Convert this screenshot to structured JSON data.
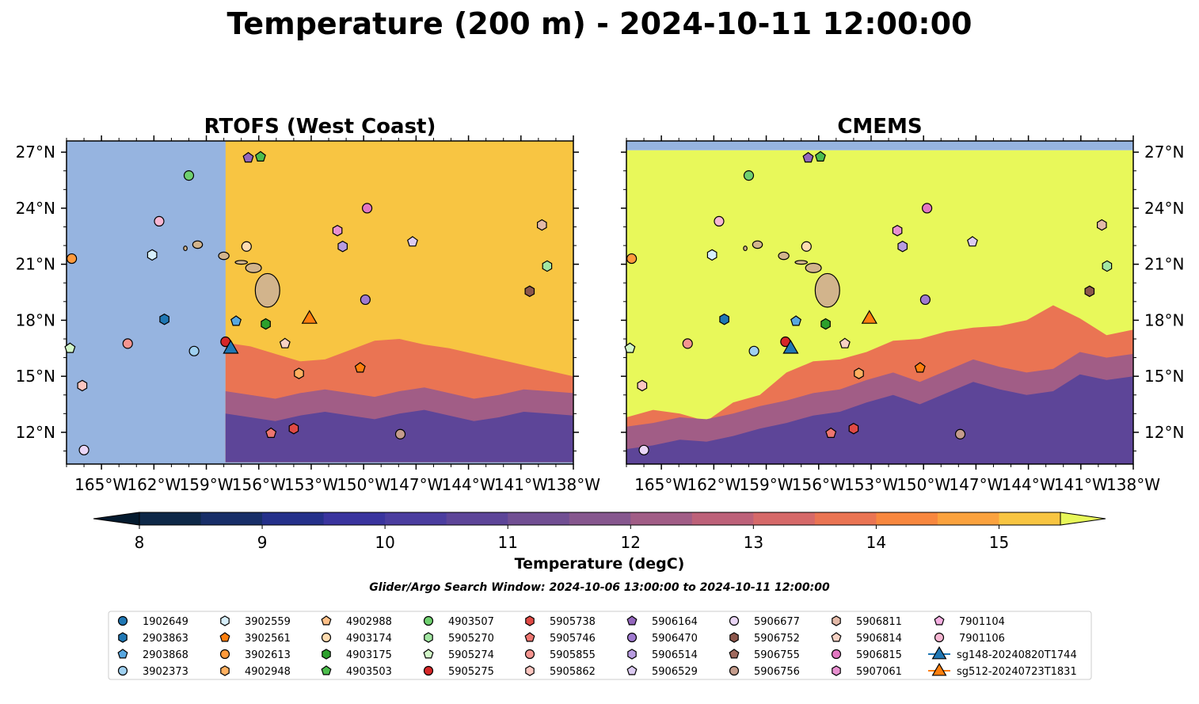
{
  "figure": {
    "title": "Temperature (200 m) - 2024-10-11 12:00:00",
    "search_window": "Glider/Argo Search Window: 2024-10-06 13:00:00 to 2024-10-11 12:00:00"
  },
  "colors": {
    "land": "#d2b48c",
    "mask": "#96b4e0",
    "frame": "#000000"
  },
  "chart_data": {
    "type": "heatmap",
    "map_extent": {
      "lon": [
        -167,
        -138
      ],
      "lat": [
        10.3,
        27.6
      ]
    },
    "xticks": [
      {
        "lon": -165,
        "label": "165°W"
      },
      {
        "lon": -162,
        "label": "162°W"
      },
      {
        "lon": -159,
        "label": "159°W"
      },
      {
        "lon": -156,
        "label": "156°W"
      },
      {
        "lon": -153,
        "label": "153°W"
      },
      {
        "lon": -150,
        "label": "150°W"
      },
      {
        "lon": -147,
        "label": "147°W"
      },
      {
        "lon": -144,
        "label": "144°W"
      },
      {
        "lon": -141,
        "label": "141°W"
      },
      {
        "lon": -138,
        "label": "138°W"
      }
    ],
    "yticks": [
      {
        "lat": 27,
        "label": "27°N"
      },
      {
        "lat": 24,
        "label": "24°N"
      },
      {
        "lat": 21,
        "label": "21°N"
      },
      {
        "lat": 18,
        "label": "18°N"
      },
      {
        "lat": 15,
        "label": "15°N"
      },
      {
        "lat": 12,
        "label": "12°N"
      }
    ],
    "panels": [
      {
        "title": "RTOFS (West Coast)",
        "model": "rtofs",
        "data_lon_min": -157.9,
        "warm_boundary_lat": [
          16.8,
          16.6,
          16.2,
          15.8,
          15.9,
          16.4,
          16.9,
          17.0,
          16.7,
          16.5,
          16.2,
          15.9,
          15.6,
          15.3,
          15.0
        ],
        "cool_boundary_lat": [
          13.0,
          12.8,
          12.6,
          12.9,
          13.1,
          12.9,
          12.7,
          13.0,
          13.2,
          12.9,
          12.6,
          12.8,
          13.1,
          13.0,
          12.9
        ]
      },
      {
        "title": "CMEMS",
        "model": "cmems",
        "data_lat_max": 27.1,
        "warm_boundary_lat": [
          12.8,
          13.2,
          13.0,
          12.6,
          13.6,
          14.0,
          15.2,
          15.8,
          15.9,
          16.3,
          16.9,
          17.0,
          17.4,
          17.6,
          17.7,
          18.0,
          18.8,
          18.1,
          17.2,
          17.5
        ],
        "cool_boundary_lat": [
          11.1,
          11.3,
          11.6,
          11.5,
          11.8,
          12.2,
          12.5,
          12.9,
          13.1,
          13.6,
          14.0,
          13.5,
          14.1,
          14.7,
          14.3,
          14.0,
          14.2,
          15.1,
          14.8,
          15.0
        ]
      }
    ],
    "colorbar": {
      "label": "Temperature (degC)",
      "min": 7.6,
      "max": 15.6,
      "ticks": [
        8,
        9,
        10,
        11,
        12,
        13,
        14,
        15
      ],
      "levels": [
        {
          "from": 7.6,
          "to": 8.0,
          "color": "#041a2e"
        },
        {
          "from": 8.0,
          "to": 8.5,
          "color": "#0e2848"
        },
        {
          "from": 8.5,
          "to": 9.0,
          "color": "#182e68"
        },
        {
          "from": 9.0,
          "to": 9.5,
          "color": "#25308a"
        },
        {
          "from": 9.5,
          "to": 10.0,
          "color": "#3a349e"
        },
        {
          "from": 10.0,
          "to": 10.5,
          "color": "#4b3d9f"
        },
        {
          "from": 10.5,
          "to": 11.0,
          "color": "#5d4598"
        },
        {
          "from": 11.0,
          "to": 11.5,
          "color": "#714f93"
        },
        {
          "from": 11.5,
          "to": 12.0,
          "color": "#86578e"
        },
        {
          "from": 12.0,
          "to": 12.5,
          "color": "#a15d86"
        },
        {
          "from": 12.5,
          "to": 13.0,
          "color": "#bd6179"
        },
        {
          "from": 13.0,
          "to": 13.5,
          "color": "#d66969"
        },
        {
          "from": 13.5,
          "to": 14.0,
          "color": "#ea7453"
        },
        {
          "from": 14.0,
          "to": 14.5,
          "color": "#f8873f"
        },
        {
          "from": 14.5,
          "to": 15.0,
          "color": "#fba23e"
        },
        {
          "from": 15.0,
          "to": 15.5,
          "color": "#f8c542"
        },
        {
          "from": 15.5,
          "to": 15.6,
          "color": "#e8f85a"
        }
      ]
    },
    "islands": [
      {
        "name": "Hawaii",
        "lon": -155.5,
        "lat": 19.6,
        "rx": 0.7,
        "ry": 0.9
      },
      {
        "name": "Maui",
        "lon": -156.3,
        "lat": 20.8,
        "rx": 0.45,
        "ry": 0.25
      },
      {
        "name": "Molokai",
        "lon": -157.0,
        "lat": 21.1,
        "rx": 0.35,
        "ry": 0.1
      },
      {
        "name": "Oahu",
        "lon": -158.0,
        "lat": 21.45,
        "rx": 0.3,
        "ry": 0.2
      },
      {
        "name": "Kauai",
        "lon": -159.5,
        "lat": 22.05,
        "rx": 0.28,
        "ry": 0.2
      },
      {
        "name": "Niihau",
        "lon": -160.2,
        "lat": 21.85,
        "rx": 0.1,
        "ry": 0.12
      }
    ],
    "platforms": [
      {
        "id": "1902649",
        "lon": -157.8,
        "lat": 16.9,
        "color": "#1f77b4",
        "marker": "circle",
        "type": "argo",
        "shown": false
      },
      {
        "id": "2903863",
        "lon": -161.4,
        "lat": 18.05,
        "color": "#1f77b4",
        "marker": "hexagon",
        "type": "argo"
      },
      {
        "id": "2903868",
        "lon": -157.3,
        "lat": 17.95,
        "color": "#58a7e0",
        "marker": "pentagon",
        "type": "argo"
      },
      {
        "id": "3902373",
        "lon": -159.7,
        "lat": 16.35,
        "color": "#9fd0f0",
        "marker": "circle",
        "type": "argo"
      },
      {
        "id": "3902559",
        "lon": -162.1,
        "lat": 21.5,
        "color": "#d6eefa",
        "marker": "hexagon",
        "type": "argo"
      },
      {
        "id": "3902561",
        "lon": -150.2,
        "lat": 15.45,
        "color": "#ff7f0e",
        "marker": "pentagon",
        "type": "argo"
      },
      {
        "id": "3902613",
        "lon": -166.7,
        "lat": 21.3,
        "color": "#ff9a3c",
        "marker": "circle",
        "type": "argo"
      },
      {
        "id": "4902948",
        "lon": -153.7,
        "lat": 15.15,
        "color": "#ffb060",
        "marker": "hexagon",
        "type": "argo"
      },
      {
        "id": "4902988",
        "lon": -152.3,
        "lat": 18.3,
        "color": "#ffc088",
        "marker": "pentagon",
        "type": "argo",
        "shown": false
      },
      {
        "id": "4903174",
        "lon": -156.7,
        "lat": 21.95,
        "color": "#ffdcb0",
        "marker": "circle",
        "type": "argo"
      },
      {
        "id": "4903175",
        "lon": -155.6,
        "lat": 17.8,
        "color": "#2ca02c",
        "marker": "hexagon",
        "type": "argo"
      },
      {
        "id": "4903503",
        "lon": -155.9,
        "lat": 26.75,
        "color": "#4cbd4c",
        "marker": "pentagon",
        "type": "argo"
      },
      {
        "id": "4903507",
        "lon": -160.0,
        "lat": 25.75,
        "color": "#6fd06f",
        "marker": "circle",
        "type": "argo"
      },
      {
        "id": "5905270",
        "lon": -139.5,
        "lat": 20.9,
        "color": "#a2e6a2",
        "marker": "hexagon",
        "type": "argo"
      },
      {
        "id": "5905274",
        "lon": -166.8,
        "lat": 16.5,
        "color": "#d2f6c8",
        "marker": "pentagon",
        "type": "argo"
      },
      {
        "id": "5905275",
        "lon": -157.9,
        "lat": 16.85,
        "color": "#d62728",
        "marker": "circle",
        "type": "argo"
      },
      {
        "id": "5905738",
        "lon": -154.0,
        "lat": 12.2,
        "color": "#e04a45",
        "marker": "hexagon",
        "type": "argo"
      },
      {
        "id": "5905746",
        "lon": -155.3,
        "lat": 11.95,
        "color": "#ee7670",
        "marker": "pentagon",
        "type": "argo"
      },
      {
        "id": "5905855",
        "lon": -163.5,
        "lat": 16.75,
        "color": "#f59590",
        "marker": "circle",
        "type": "argo"
      },
      {
        "id": "5905862",
        "lon": -166.1,
        "lat": 14.5,
        "color": "#fcc6c0",
        "marker": "hexagon",
        "type": "argo"
      },
      {
        "id": "5906164",
        "lon": -156.6,
        "lat": 26.7,
        "color": "#9467bd",
        "marker": "pentagon",
        "type": "argo"
      },
      {
        "id": "5906470",
        "lon": -149.9,
        "lat": 19.1,
        "color": "#a07ad0",
        "marker": "circle",
        "type": "argo"
      },
      {
        "id": "5906514",
        "lon": -151.2,
        "lat": 21.95,
        "color": "#b89ce0",
        "marker": "hexagon",
        "type": "argo"
      },
      {
        "id": "5906529",
        "lon": -147.2,
        "lat": 22.2,
        "color": "#dccbf2",
        "marker": "pentagon",
        "type": "argo"
      },
      {
        "id": "5906677",
        "lon": -166.0,
        "lat": 11.05,
        "color": "#ead6f6",
        "marker": "circle",
        "type": "argo"
      },
      {
        "id": "5906752",
        "lon": -140.5,
        "lat": 19.55,
        "color": "#8c564b",
        "marker": "hexagon",
        "type": "argo"
      },
      {
        "id": "5906755",
        "lon": -152.0,
        "lat": 18.1,
        "color": "#a06a5e",
        "marker": "pentagon",
        "type": "argo",
        "shown": false
      },
      {
        "id": "5906756",
        "lon": -147.9,
        "lat": 11.9,
        "color": "#c49c8c",
        "marker": "circle",
        "type": "argo"
      },
      {
        "id": "5906811",
        "lon": -139.8,
        "lat": 23.1,
        "color": "#e3b9a8",
        "marker": "hexagon",
        "type": "argo"
      },
      {
        "id": "5906814",
        "lon": -154.5,
        "lat": 16.75,
        "color": "#f7d2c4",
        "marker": "pentagon",
        "type": "argo"
      },
      {
        "id": "5906815",
        "lon": -149.8,
        "lat": 24.0,
        "color": "#e377c2",
        "marker": "circle",
        "type": "argo"
      },
      {
        "id": "5907061",
        "lon": -151.5,
        "lat": 22.8,
        "color": "#e890d0",
        "marker": "hexagon",
        "type": "argo"
      },
      {
        "id": "7901104",
        "lon": -161.2,
        "lat": 26.2,
        "color": "#f5b0e2",
        "marker": "pentagon",
        "type": "argo",
        "shown": false
      },
      {
        "id": "7901106",
        "lon": -161.7,
        "lat": 23.3,
        "color": "#f7b6d2",
        "marker": "circle",
        "type": "argo"
      },
      {
        "id": "sg148-20240820T1744",
        "lon": -157.6,
        "lat": 16.55,
        "color": "#1f77b4",
        "marker": "triangle",
        "type": "glider"
      },
      {
        "id": "sg512-20240723T1831",
        "lon": -153.1,
        "lat": 18.15,
        "color": "#ff7f0e",
        "marker": "triangle",
        "type": "glider"
      }
    ]
  }
}
